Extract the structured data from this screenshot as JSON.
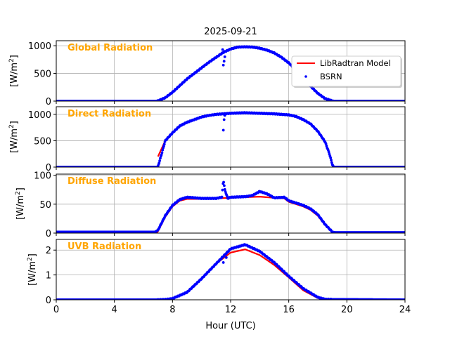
{
  "chart_data": [
    {
      "type": "line",
      "title": "Global Radiation",
      "ylabel": "[W/m2]",
      "xlim": [
        0,
        24
      ],
      "ylim": [
        0,
        1090
      ],
      "yticks": [
        0,
        500,
        1000
      ],
      "series": [
        {
          "name": "LibRadtran Model",
          "color": "#ff0000",
          "style": "line",
          "x": [
            0,
            6.8,
            7,
            7.5,
            8,
            8.5,
            9,
            9.5,
            10,
            10.5,
            11,
            11.5,
            12,
            12.5,
            13,
            13.5,
            14,
            14.5,
            15,
            15.5,
            16,
            16.5,
            17,
            17.5,
            18,
            18.5,
            19,
            19.2,
            24
          ],
          "y": [
            0,
            0,
            5,
            60,
            160,
            280,
            400,
            500,
            600,
            700,
            790,
            880,
            940,
            975,
            980,
            975,
            955,
            920,
            870,
            790,
            690,
            560,
            420,
            270,
            140,
            45,
            5,
            0,
            0
          ]
        },
        {
          "name": "BSRN",
          "color": "#0000ff",
          "style": "dots",
          "x": [
            0,
            6.8,
            7,
            7.5,
            8,
            8.5,
            9,
            9.5,
            10,
            10.5,
            11,
            11.5,
            12,
            12.5,
            13,
            13.5,
            14,
            14.5,
            15,
            15.5,
            16,
            16.5,
            17,
            17.5,
            18,
            18.5,
            19,
            19.2,
            24
          ],
          "y": [
            0,
            0,
            5,
            60,
            160,
            280,
            400,
            500,
            600,
            700,
            790,
            880,
            940,
            975,
            980,
            975,
            955,
            920,
            870,
            790,
            690,
            560,
            420,
            270,
            140,
            45,
            5,
            0,
            0
          ],
          "outliers": [
            [
              11.5,
              650
            ],
            [
              11.55,
              720
            ],
            [
              11.6,
              800
            ],
            [
              11.45,
              930
            ]
          ]
        }
      ]
    },
    {
      "type": "line",
      "title": "Direct Radiation",
      "ylabel": "[W/m2]",
      "xlim": [
        0,
        24
      ],
      "ylim": [
        0,
        1145
      ],
      "yticks": [
        0,
        500,
        1000
      ],
      "series": [
        {
          "name": "LibRadtran Model",
          "color": "#ff0000",
          "style": "line",
          "x": [
            7,
            7.5,
            8,
            8.5,
            9,
            9.5,
            10,
            10.5,
            11,
            12,
            13,
            14,
            15,
            16,
            16.5,
            17,
            17.5,
            18,
            18.5,
            18.8,
            19
          ],
          "y": [
            200,
            500,
            650,
            780,
            850,
            900,
            950,
            980,
            1000,
            1020,
            1030,
            1020,
            1010,
            990,
            960,
            900,
            820,
            680,
            480,
            250,
            50
          ]
        },
        {
          "name": "BSRN",
          "color": "#0000ff",
          "style": "dots",
          "x": [
            0,
            6.9,
            7.0,
            7.2,
            7.5,
            8,
            8.5,
            9,
            9.5,
            10,
            10.5,
            11,
            12,
            13,
            14,
            15,
            16,
            16.5,
            17,
            17.5,
            18,
            18.5,
            18.8,
            19,
            19.1,
            24
          ],
          "y": [
            0,
            0,
            10,
            200,
            500,
            650,
            780,
            850,
            900,
            950,
            980,
            1000,
            1020,
            1030,
            1020,
            1010,
            990,
            960,
            900,
            820,
            680,
            480,
            250,
            50,
            0,
            0
          ],
          "outliers": [
            [
              11.5,
              700
            ],
            [
              11.55,
              900
            ],
            [
              11.6,
              980
            ]
          ]
        }
      ]
    },
    {
      "type": "line",
      "title": "Diffuse Radiation",
      "ylabel": "[W/m2]",
      "xlim": [
        0,
        24
      ],
      "ylim": [
        0,
        102
      ],
      "yticks": [
        0,
        50,
        100
      ],
      "series": [
        {
          "name": "LibRadtran Model",
          "color": "#ff0000",
          "style": "line",
          "x": [
            6.9,
            7,
            7.5,
            8,
            8.5,
            9,
            10,
            11,
            12,
            13,
            14,
            15,
            15.7,
            16,
            17,
            17.5,
            18,
            18.5,
            19,
            19.2
          ],
          "y": [
            0,
            3,
            28,
            46,
            56,
            59,
            59,
            60,
            61,
            62,
            63,
            61,
            60,
            54,
            46,
            40,
            30,
            14,
            2,
            0
          ]
        },
        {
          "name": "BSRN",
          "color": "#0000ff",
          "style": "dots",
          "x": [
            0,
            6.8,
            7,
            7.5,
            8,
            8.5,
            9,
            10,
            11,
            11.4,
            11.5,
            11.6,
            11.8,
            12,
            13,
            13.5,
            14,
            14.5,
            15,
            15.7,
            16,
            17,
            17.5,
            18,
            18.5,
            19,
            19.2,
            24
          ],
          "y": [
            2,
            2,
            5,
            30,
            48,
            58,
            62,
            60,
            60,
            62,
            92,
            75,
            60,
            62,
            63,
            65,
            72,
            68,
            61,
            62,
            56,
            48,
            42,
            32,
            15,
            2,
            1,
            1
          ]
        },
        {
          "name": "",
          "color": "#0000ff",
          "style": "none",
          "x": [],
          "y": []
        }
      ]
    },
    {
      "type": "line",
      "title": "UVB Radiation",
      "ylabel": "[W/m2]",
      "xlabel": "Hour (UTC)",
      "xlim": [
        0,
        24
      ],
      "ylim": [
        0,
        2.43
      ],
      "yticks": [
        0,
        1,
        2
      ],
      "xticks": [
        0,
        4,
        8,
        12,
        16,
        20,
        24
      ],
      "series": [
        {
          "name": "LibRadtran Model",
          "color": "#ff0000",
          "style": "line",
          "x": [
            0,
            7,
            7.5,
            8,
            9,
            10,
            11,
            12,
            13,
            14,
            15,
            16,
            17,
            18,
            18.5,
            24
          ],
          "y": [
            0,
            0,
            0.01,
            0.05,
            0.3,
            0.85,
            1.45,
            1.9,
            2.03,
            1.8,
            1.4,
            0.9,
            0.38,
            0.07,
            0.01,
            0
          ]
        },
        {
          "name": "BSRN",
          "color": "#0000ff",
          "style": "dots",
          "x": [
            0,
            7,
            7.5,
            8,
            9,
            10,
            11,
            12,
            13,
            14,
            15,
            16,
            17,
            18,
            18.5,
            24
          ],
          "y": [
            0,
            0,
            0.01,
            0.05,
            0.3,
            0.85,
            1.45,
            2.05,
            2.22,
            1.95,
            1.5,
            0.95,
            0.45,
            0.1,
            0.02,
            0
          ],
          "outliers": [
            [
              11.5,
              1.5
            ],
            [
              11.7,
              1.7
            ]
          ]
        }
      ]
    }
  ],
  "figure": {
    "title": "2025-09-21",
    "xlabel": "Hour (UTC)",
    "ylabel": "[W/m2]",
    "legend": {
      "placement": "top-right of first panel",
      "entries": [
        "LibRadtran Model",
        "BSRN"
      ]
    }
  }
}
